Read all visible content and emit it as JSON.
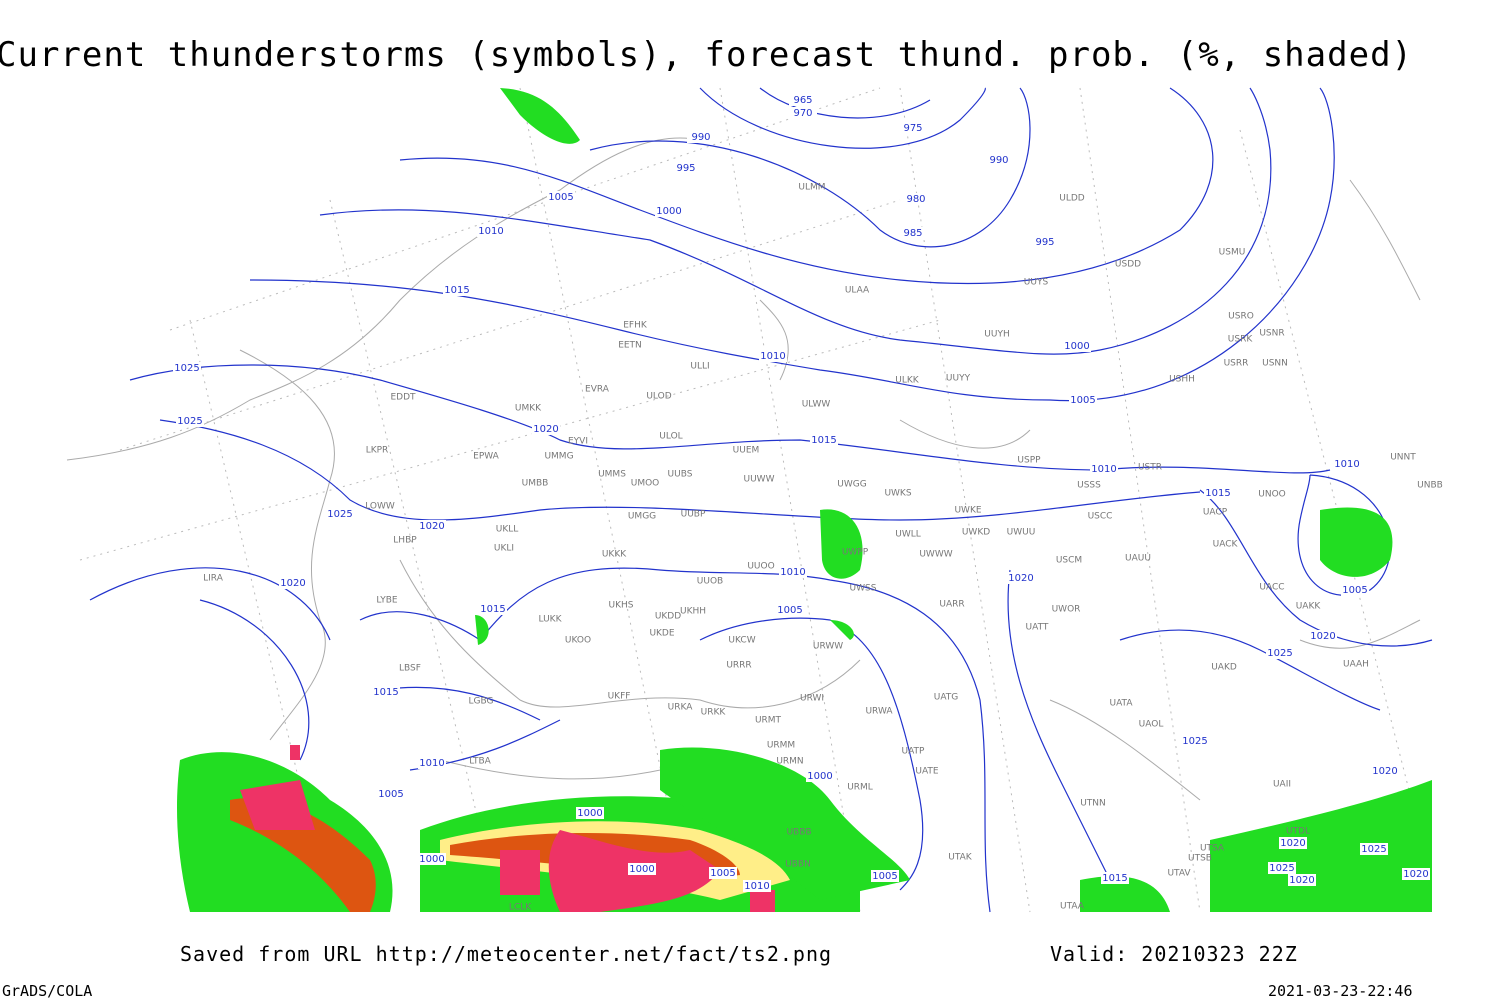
{
  "header": {
    "title": "Current thunderstorms (symbols), forecast thund. prob. (%, shaded)"
  },
  "map": {
    "isobar_labels": [
      965,
      970,
      975,
      990,
      995,
      990,
      980,
      985,
      995,
      1005,
      1000,
      1010,
      1015,
      1010,
      1000,
      1005,
      1025,
      1025,
      1020,
      1015,
      1010,
      1015,
      1010,
      1025,
      1020,
      1010,
      1020,
      1015,
      1005,
      1020,
      1005,
      1020,
      1025,
      1015,
      1010,
      1005,
      1000,
      1000,
      1025,
      1020,
      1000,
      1000,
      1005,
      1010,
      1005,
      1015,
      1020,
      1025,
      1025,
      1020,
      1020
    ],
    "stations": [
      "ULMM",
      "ULDD",
      "USDD",
      "USMU",
      "UUYS",
      "ULAA",
      "EFHK",
      "EETN",
      "UUYH",
      "USRO",
      "USRK",
      "USNR",
      "USRR",
      "USNN",
      "ULLI",
      "EVRA",
      "ULKK",
      "UUYY",
      "USHH",
      "EDDT",
      "ULOD",
      "UMKK",
      "ULWW",
      "EYVI",
      "ULOL",
      "LKPR",
      "UUEM",
      "EPWA",
      "UMMG",
      "USPP",
      "USTR",
      "UMMS",
      "UMOO",
      "UUBS",
      "UUWW",
      "USSS",
      "UMBB",
      "UWGG",
      "UWKS",
      "UNOO",
      "LOWW",
      "UMGG",
      "UUBP",
      "UWKE",
      "USCC",
      "UACP",
      "UKLL",
      "UWLL",
      "UWKD",
      "UWUU",
      "UACK",
      "LHBP",
      "UKLI",
      "UWPP",
      "UWWW",
      "USCM",
      "UAUU",
      "UKKK",
      "UUOO",
      "LIRA",
      "UUOB",
      "UWSS",
      "UACC",
      "UAKK",
      "LYBE",
      "UKHS",
      "UKDD",
      "UKHH",
      "UARR",
      "UWOR",
      "LUKK",
      "UKOO",
      "UKDE",
      "UKCW",
      "UATT",
      "URWW",
      "UAKD",
      "UAAH",
      "LBSF",
      "URRR",
      "UKFF",
      "URWI",
      "UATG",
      "UATA",
      "LGBG",
      "URKA",
      "URKK",
      "URWA",
      "URMT",
      "UAOL",
      "URMM",
      "UATP",
      "LTBA",
      "URMN",
      "UATE",
      "UAII",
      "URML",
      "UTNN",
      "UTDL",
      "UBBB",
      "UBBN",
      "UTSA",
      "UTSB",
      "UTAK",
      "UTAV",
      "UTAA",
      "LCLK",
      "UNNT",
      "UNBB"
    ]
  },
  "footer": {
    "saved_from": "Saved from URL http://meteocenter.net/fact/ts2.png",
    "valid": "Valid: 20210323 22Z",
    "credit": "GrADS/COLA",
    "timestamp": "2021-03-23-22:46"
  }
}
